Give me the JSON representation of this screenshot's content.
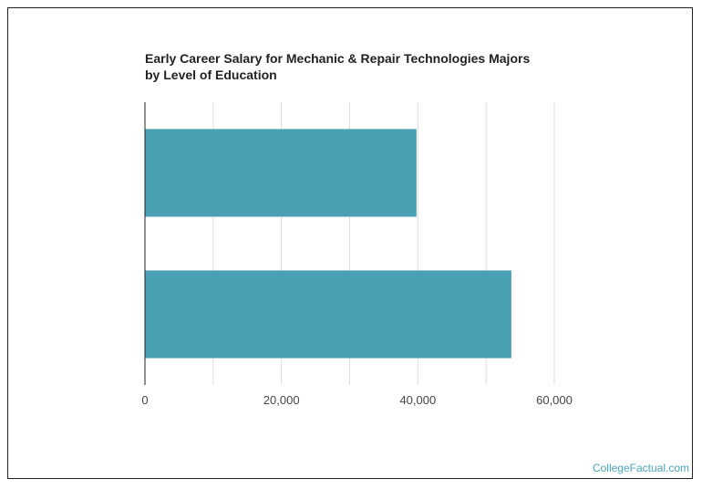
{
  "chart_data": {
    "type": "bar",
    "orientation": "horizontal",
    "title": "Early Career Salary for Mechanic & Repair Technologies Majors by Level of Education",
    "categories": [
      "",
      ""
    ],
    "values": [
      39800,
      53700
    ],
    "xlim": [
      0,
      60000
    ],
    "xticks": [
      0,
      20000,
      40000,
      60000
    ],
    "xtick_labels": [
      "0",
      "20,000",
      "40,000",
      "60,000"
    ],
    "xlabel": "",
    "ylabel": "",
    "grid": true,
    "legend": "none",
    "bar_color": "#4aa0b3"
  },
  "watermark": "CollegeFactual.com"
}
